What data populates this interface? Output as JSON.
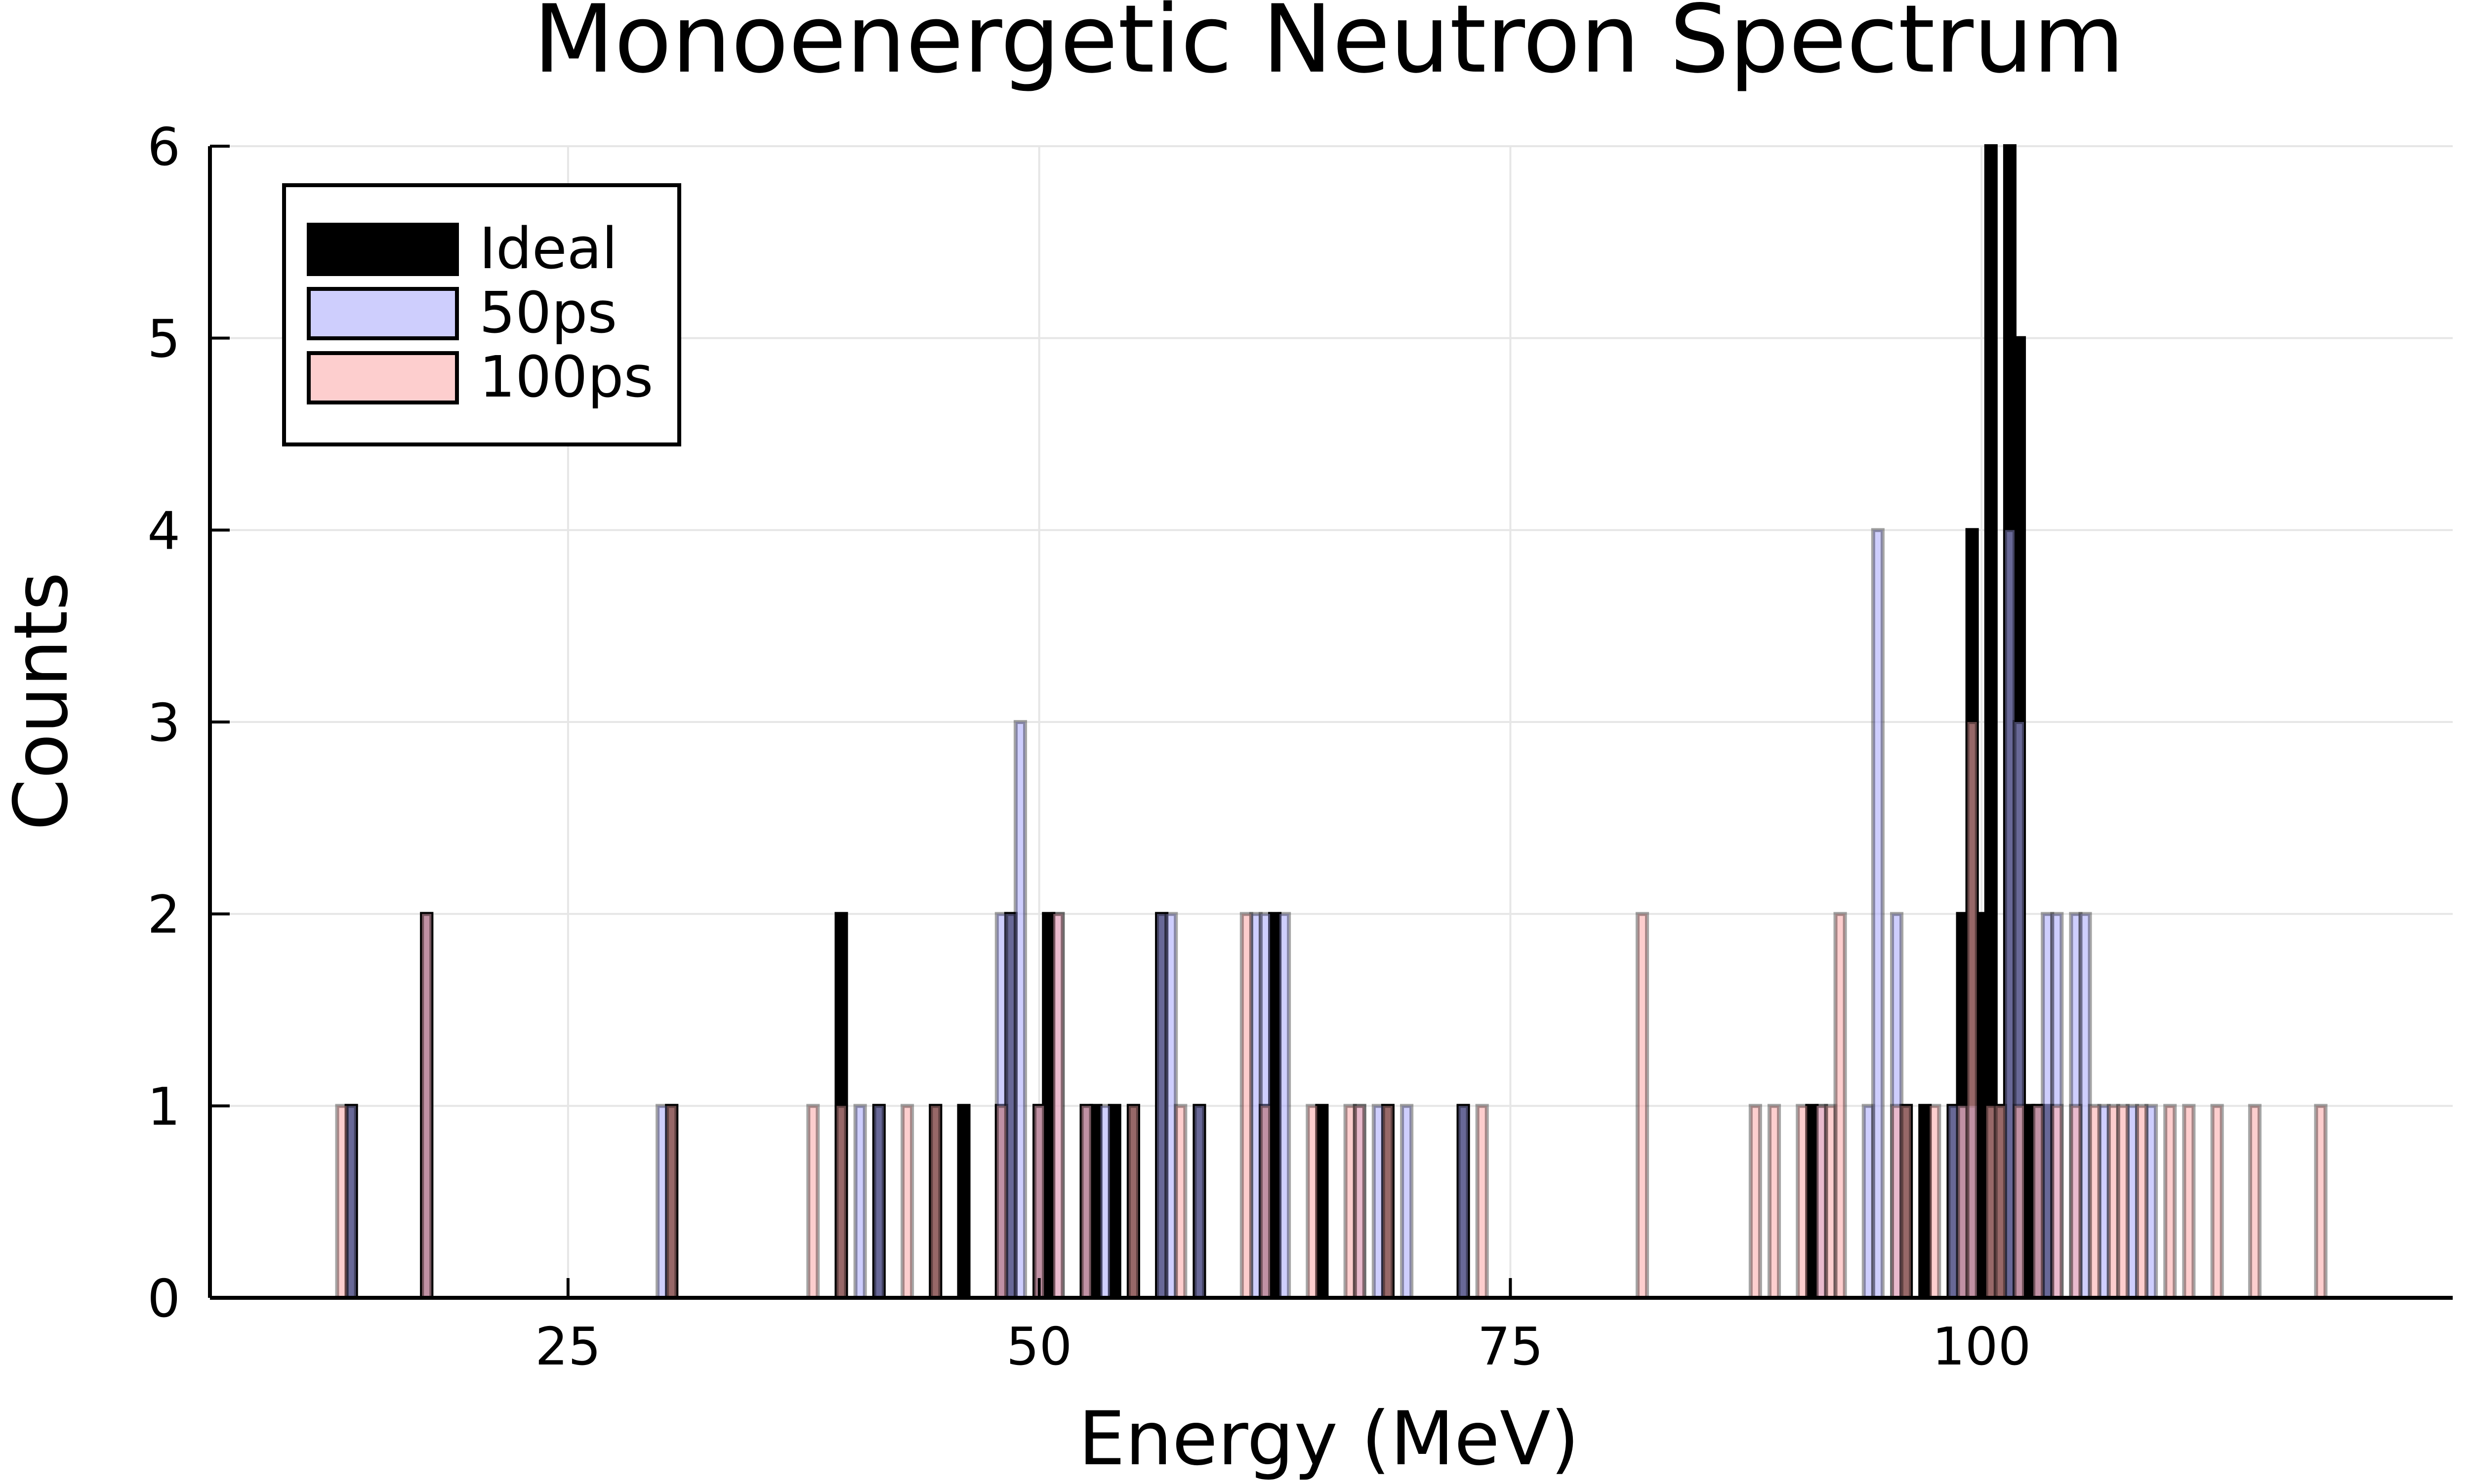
{
  "chart_data": {
    "type": "bar",
    "title": "Monoenergetic Neutron Spectrum",
    "xlabel": "Energy (MeV)",
    "ylabel": "Counts",
    "xlim": [
      6,
      125
    ],
    "ylim": [
      0,
      6
    ],
    "xticks": [
      25,
      50,
      75,
      100
    ],
    "yticks": [
      0,
      1,
      2,
      3,
      4,
      5,
      6
    ],
    "bin_width": 0.5,
    "grid": true,
    "legend_position": "top-left",
    "series": [
      {
        "name": "Ideal",
        "color": "#000000",
        "fill_opacity": 1.0,
        "points": [
          [
            13.5,
            1
          ],
          [
            17.5,
            2
          ],
          [
            30.5,
            1
          ],
          [
            39.5,
            2
          ],
          [
            41.5,
            1
          ],
          [
            44.5,
            1
          ],
          [
            46.0,
            1
          ],
          [
            48.0,
            1
          ],
          [
            48.5,
            2
          ],
          [
            50.0,
            1
          ],
          [
            50.5,
            2
          ],
          [
            52.5,
            1
          ],
          [
            53.0,
            1
          ],
          [
            54.0,
            1
          ],
          [
            55.0,
            1
          ],
          [
            56.5,
            2
          ],
          [
            58.5,
            1
          ],
          [
            62.0,
            1
          ],
          [
            62.5,
            2
          ],
          [
            65.0,
            1
          ],
          [
            68.5,
            1
          ],
          [
            72.5,
            1
          ],
          [
            91.0,
            1
          ],
          [
            96.0,
            1
          ],
          [
            97.0,
            1
          ],
          [
            98.5,
            1
          ],
          [
            99.0,
            2
          ],
          [
            99.5,
            4
          ],
          [
            100.0,
            2
          ],
          [
            100.5,
            6
          ],
          [
            101.0,
            1
          ],
          [
            101.5,
            6
          ],
          [
            102.0,
            5
          ],
          [
            102.5,
            1
          ],
          [
            103.0,
            1
          ],
          [
            103.5,
            1
          ]
        ]
      },
      {
        "name": "50ps",
        "color": "#aeaefc",
        "fill_opacity": 0.6,
        "points": [
          [
            13.5,
            1
          ],
          [
            17.5,
            2
          ],
          [
            30.0,
            1
          ],
          [
            40.5,
            1
          ],
          [
            41.5,
            1
          ],
          [
            48.0,
            2
          ],
          [
            48.5,
            2
          ],
          [
            49.0,
            3
          ],
          [
            50.0,
            1
          ],
          [
            51.0,
            2
          ],
          [
            52.5,
            1
          ],
          [
            53.5,
            1
          ],
          [
            56.5,
            2
          ],
          [
            57.0,
            2
          ],
          [
            58.5,
            1
          ],
          [
            61.5,
            2
          ],
          [
            62.0,
            2
          ],
          [
            63.0,
            2
          ],
          [
            67.0,
            1
          ],
          [
            68.0,
            1
          ],
          [
            69.5,
            1
          ],
          [
            72.5,
            1
          ],
          [
            91.5,
            1
          ],
          [
            94.0,
            1
          ],
          [
            94.5,
            4
          ],
          [
            95.5,
            2
          ],
          [
            98.5,
            1
          ],
          [
            99.0,
            1
          ],
          [
            99.5,
            1
          ],
          [
            101.5,
            4
          ],
          [
            102.0,
            3
          ],
          [
            103.0,
            1
          ],
          [
            103.5,
            2
          ],
          [
            104.0,
            2
          ],
          [
            105.0,
            2
          ],
          [
            105.5,
            2
          ],
          [
            106.5,
            1
          ],
          [
            108.0,
            1
          ],
          [
            109.0,
            1
          ]
        ]
      },
      {
        "name": "100ps",
        "color": "#fcaeae",
        "fill_opacity": 0.6,
        "points": [
          [
            13.0,
            1
          ],
          [
            17.5,
            2
          ],
          [
            30.5,
            1
          ],
          [
            38.0,
            1
          ],
          [
            39.5,
            1
          ],
          [
            43.0,
            1
          ],
          [
            44.5,
            1
          ],
          [
            48.0,
            1
          ],
          [
            50.0,
            1
          ],
          [
            51.0,
            2
          ],
          [
            52.5,
            1
          ],
          [
            55.0,
            1
          ],
          [
            57.5,
            1
          ],
          [
            61.0,
            2
          ],
          [
            62.0,
            1
          ],
          [
            64.5,
            1
          ],
          [
            66.5,
            1
          ],
          [
            67.0,
            1
          ],
          [
            68.5,
            1
          ],
          [
            73.5,
            1
          ],
          [
            82.0,
            2
          ],
          [
            88.0,
            1
          ],
          [
            89.0,
            1
          ],
          [
            90.5,
            1
          ],
          [
            91.5,
            1
          ],
          [
            92.0,
            1
          ],
          [
            92.5,
            2
          ],
          [
            95.5,
            1
          ],
          [
            96.0,
            1
          ],
          [
            97.5,
            1
          ],
          [
            99.0,
            1
          ],
          [
            99.5,
            3
          ],
          [
            100.5,
            1
          ],
          [
            101.0,
            1
          ],
          [
            102.0,
            1
          ],
          [
            103.0,
            1
          ],
          [
            104.0,
            1
          ],
          [
            105.0,
            1
          ],
          [
            106.0,
            1
          ],
          [
            107.0,
            1
          ],
          [
            107.5,
            1
          ],
          [
            108.5,
            1
          ],
          [
            110.0,
            1
          ],
          [
            111.0,
            1
          ],
          [
            112.5,
            1
          ],
          [
            114.5,
            1
          ],
          [
            118.0,
            1
          ]
        ]
      }
    ]
  }
}
